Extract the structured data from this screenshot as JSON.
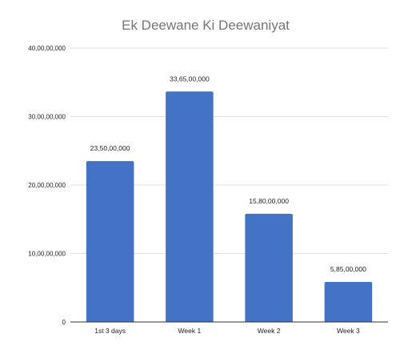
{
  "chart_data": {
    "type": "bar",
    "title": "Ek Deewane Ki Deewaniyat",
    "categories": [
      "1st 3 days",
      "Week 1",
      "Week 2",
      "Week 3"
    ],
    "values": [
      235000000,
      336500000,
      158000000,
      58500000
    ],
    "data_labels": [
      "23,50,00,000",
      "33,65,00,000",
      "15,80,00,000",
      "5,85,00,000"
    ],
    "ylim": [
      0,
      400000000
    ],
    "yticks": [
      {
        "value": 0,
        "label": "0"
      },
      {
        "value": 100000000,
        "label": "10,00,00,000"
      },
      {
        "value": 200000000,
        "label": "20,00,00,000"
      },
      {
        "value": 300000000,
        "label": "30,00,00,000"
      },
      {
        "value": 400000000,
        "label": "40,00,00,000"
      }
    ],
    "grid": true,
    "bar_color": "#4472c4"
  }
}
